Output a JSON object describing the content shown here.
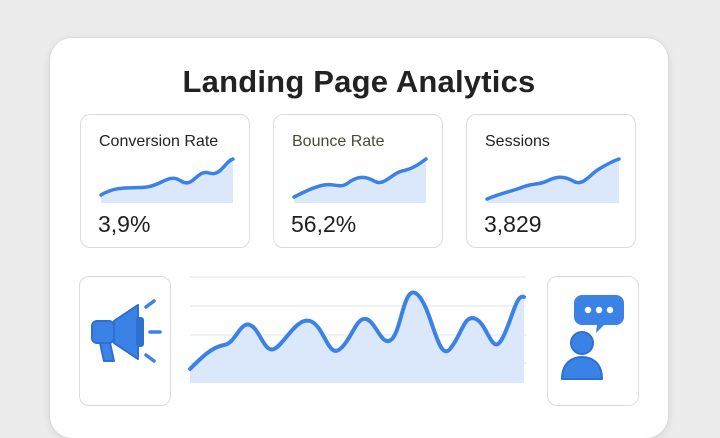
{
  "page": {
    "title": "Landing Page Analytics"
  },
  "metrics": [
    {
      "label": "Conversion Rate",
      "value": "3,9%"
    },
    {
      "label": "Bounce Rate",
      "value": "56,2%"
    },
    {
      "label": "Sessions",
      "value": "3,829"
    }
  ],
  "icons": {
    "left": "megaphone-icon",
    "right": "user-chat-icon"
  },
  "colors": {
    "accent": "#3b82e6",
    "label_alt": "#4a4a3a",
    "fill": "#dbe8fb",
    "background": "#ececed",
    "card_border": "#dcdcdc"
  }
}
